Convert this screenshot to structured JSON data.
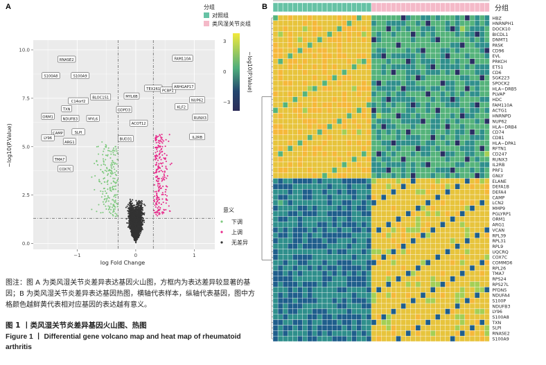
{
  "panel_a": {
    "letter": "A",
    "xlabel": "log Fold Change",
    "ylabel": "−log10(P.Value)",
    "x_ticks": [
      "−1",
      "0",
      "1"
    ],
    "y_ticks": [
      "0.0",
      "2.5",
      "5.0",
      "7.5",
      "10.0"
    ],
    "legend": {
      "title": "意义",
      "items": [
        {
          "label": "下调",
          "color": "#7fc97f"
        },
        {
          "label": "上调",
          "color": "#e7298a"
        },
        {
          "label": "无差异",
          "color": "#333333"
        }
      ]
    },
    "colorbar": {
      "title": "−log10(P.Value)",
      "ticks": [
        "3",
        "0",
        "−3"
      ],
      "colors": [
        "#f2e93b",
        "#4fae7c",
        "#23456e",
        "#2c2d58"
      ]
    },
    "labels": [
      {
        "text": "RNASE2",
        "x": -1.18,
        "y": 9.5
      },
      {
        "text": "S100A8",
        "x": -1.45,
        "y": 8.65
      },
      {
        "text": "S100A9",
        "x": -0.95,
        "y": 8.65
      },
      {
        "text": "C14orf2",
        "x": -0.98,
        "y": 7.35
      },
      {
        "text": "BLOC1S1",
        "x": -0.6,
        "y": 7.55
      },
      {
        "text": "MYL6B",
        "x": -0.07,
        "y": 7.6
      },
      {
        "text": "TXN",
        "x": -1.18,
        "y": 6.95
      },
      {
        "text": "NDUFB3",
        "x": -1.12,
        "y": 6.45
      },
      {
        "text": "ORM1",
        "x": -1.5,
        "y": 6.55
      },
      {
        "text": "MYL6",
        "x": -0.73,
        "y": 6.45
      },
      {
        "text": "GDPD3",
        "x": -0.2,
        "y": 6.9
      },
      {
        "text": "SLPI",
        "x": -0.98,
        "y": 5.75
      },
      {
        "text": "CAMP",
        "x": -1.33,
        "y": 5.7
      },
      {
        "text": "ARG1",
        "x": -1.13,
        "y": 5.25
      },
      {
        "text": "LY96",
        "x": -1.5,
        "y": 5.45
      },
      {
        "text": "TMA7",
        "x": -1.3,
        "y": 4.35
      },
      {
        "text": "COX7C",
        "x": -1.2,
        "y": 3.85
      },
      {
        "text": "ACOT12",
        "x": 0.05,
        "y": 6.2
      },
      {
        "text": "BUD31",
        "x": -0.17,
        "y": 5.4
      },
      {
        "text": "FAM110A",
        "x": 0.8,
        "y": 9.55
      },
      {
        "text": "TEX261",
        "x": 0.3,
        "y": 8.0
      },
      {
        "text": "PCBP1",
        "x": 0.55,
        "y": 7.9
      },
      {
        "text": "ARHGAP17",
        "x": 0.82,
        "y": 8.1
      },
      {
        "text": "NUP62",
        "x": 1.05,
        "y": 7.4
      },
      {
        "text": "KLF2",
        "x": 0.78,
        "y": 7.05
      },
      {
        "text": "RUNX3",
        "x": 1.1,
        "y": 6.5
      },
      {
        "text": "IL2RB",
        "x": 1.05,
        "y": 5.5
      }
    ],
    "chart_data": {
      "type": "scatter",
      "xlabel": "log Fold Change",
      "ylabel": "−log10(P.Value)",
      "xlim": [
        -1.75,
        1.35
      ],
      "ylim": [
        -0.3,
        10.5
      ],
      "x_ticks": [
        -1,
        0,
        1
      ],
      "y_ticks": [
        0,
        2.5,
        5,
        7.5,
        10
      ],
      "thresholds": {
        "logfc": [
          -0.3,
          0.3
        ],
        "p": 1.3
      },
      "grid": true,
      "legend_position": "right",
      "series": [
        {
          "name": "下调",
          "color": "#7fc97f",
          "n": 200
        },
        {
          "name": "上调",
          "color": "#e7298a",
          "n": 230
        },
        {
          "name": "无差异",
          "color": "#333333",
          "n": 2200
        }
      ]
    }
  },
  "panel_b": {
    "letter": "B",
    "group_title": "分组",
    "group_legend": [
      {
        "label": "对照组",
        "color": "#66c2a5"
      },
      {
        "label": "类风湿关节炎组",
        "color": "#f4b9c8"
      }
    ],
    "annotation_label": "分组",
    "genes": [
      "HBZ",
      "HNRNPH1",
      "DOCK10",
      "BICDL1",
      "DNMT1",
      "PASK",
      "CD96",
      "EVL",
      "PRKCH",
      "ETS1",
      "CD6",
      "SGK223",
      "SPOCK2",
      "HLA−DRB5",
      "PLVAP",
      "HDC",
      "FAM110A",
      "ACTG1",
      "HNRNPD",
      "NUP62",
      "HLA−DRB4",
      "CD74",
      "CD81",
      "HLA−DPA1",
      "RFTN1",
      "CD247",
      "RUNX3",
      "IL2RB",
      "PRF1",
      "GNLY",
      "ELANE",
      "DEFA1B",
      "DEFA4",
      "CAMP",
      "LCN2",
      "MMP9",
      "PGLYRP1",
      "ORM1",
      "ARG1",
      "VCAN",
      "RPL39",
      "RPL31",
      "RPL9",
      "UQCRQ",
      "COX7C",
      "COMMD6",
      "RPL26",
      "TMA7",
      "RPS24",
      "RPS27L",
      "PFDN5",
      "NDUFA4",
      "S100P",
      "NDUFB3",
      "LY96",
      "S100A8",
      "TXN",
      "SLPI",
      "RNASE2",
      "S100A9"
    ],
    "n_control": 20,
    "n_ra": 24,
    "heat_colors": [
      "#2a2f63",
      "#1f5e8c",
      "#2f8f8c",
      "#55b37b",
      "#a4cf55",
      "#e7c43c",
      "#f6b83a"
    ]
  },
  "caption": {
    "note": "图注：图 A 为类风湿关节炎差异表达基因火山图，方框内为表达差异较显著的基因；B 为类风湿关节炎差异表达基因热图，横轴代表样本，纵轴代表基因，图中方格颜色越鲜黄代表相对应基因的表达越有意义。",
    "fig_cn": "图 1 丨类风湿关节炎差异基因火山图、热图",
    "fig_en": "Figure 1 丨 Differential gene volcano map and heat map of rheumatoid arthritis"
  }
}
